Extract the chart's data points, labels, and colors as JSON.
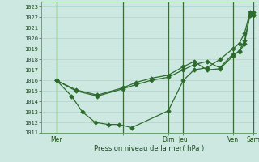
{
  "xlabel": "Pression niveau de la mer( hPa )",
  "ylim": [
    1011,
    1023.5
  ],
  "background_color": "#cce8e0",
  "grid_color": "#aacccc",
  "line_color": "#2d6b2d",
  "marker_color": "#2d6b2d",
  "yticks": [
    1011,
    1012,
    1013,
    1014,
    1015,
    1016,
    1017,
    1018,
    1019,
    1020,
    1021,
    1022,
    1023
  ],
  "xtick_positions": [
    0.07,
    0.38,
    0.59,
    0.66,
    0.89,
    0.985
  ],
  "xtick_labels": [
    "Mer",
    "",
    "Dim",
    "Jeu",
    "Ven",
    "Sam"
  ],
  "vline_positions": [
    0.07,
    0.38,
    0.59,
    0.66,
    0.89,
    0.985
  ],
  "series1_x": [
    0.07,
    0.16,
    0.26,
    0.38,
    0.44,
    0.51,
    0.59,
    0.66,
    0.71,
    0.77,
    0.83,
    0.89,
    0.92,
    0.945,
    0.97,
    0.985
  ],
  "series1_y": [
    1016,
    1015.0,
    1014.5,
    1015.2,
    1015.6,
    1016.0,
    1016.3,
    1017.0,
    1017.5,
    1017.8,
    1017.2,
    1018.5,
    1018.7,
    1019.5,
    1022.3,
    1022.5
  ],
  "series2_x": [
    0.07,
    0.16,
    0.26,
    0.38,
    0.44,
    0.51,
    0.59,
    0.66,
    0.71,
    0.77,
    0.83,
    0.89,
    0.92,
    0.945,
    0.97,
    0.985
  ],
  "series2_y": [
    1016,
    1015.1,
    1014.6,
    1015.3,
    1015.8,
    1016.2,
    1016.5,
    1017.3,
    1017.8,
    1017.0,
    1017.1,
    1018.3,
    1018.8,
    1019.8,
    1022.2,
    1022.2
  ],
  "series3_x": [
    0.07,
    0.14,
    0.19,
    0.25,
    0.31,
    0.36,
    0.42,
    0.59,
    0.66,
    0.71,
    0.77,
    0.83,
    0.89,
    0.92,
    0.945,
    0.97,
    0.985
  ],
  "series3_y": [
    1016,
    1014.5,
    1013.0,
    1012.0,
    1011.8,
    1011.8,
    1011.5,
    1013.1,
    1016.0,
    1017.0,
    1017.2,
    1018.0,
    1019.0,
    1019.5,
    1020.5,
    1022.5,
    1022.3
  ]
}
